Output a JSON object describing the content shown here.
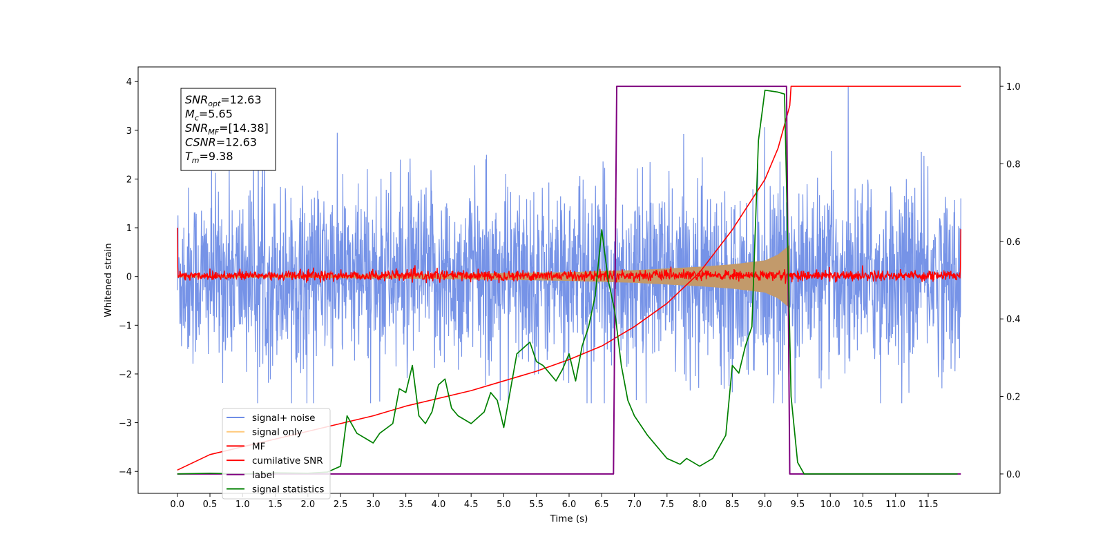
{
  "chart_data": {
    "type": "line",
    "title": "",
    "xlabel": "Time (s)",
    "ylabel_left": "Whitened strain",
    "ylabel_right": "",
    "xlim": [
      -0.6,
      12.6
    ],
    "ylim_left": [
      -4.45,
      4.3
    ],
    "ylim_right": [
      -0.05,
      1.05
    ],
    "x_ticks": [
      0.0,
      0.5,
      1.0,
      1.5,
      2.0,
      2.5,
      3.0,
      3.5,
      4.0,
      4.5,
      5.0,
      5.5,
      6.0,
      6.5,
      7.0,
      7.5,
      8.0,
      8.5,
      9.0,
      9.5,
      10.0,
      10.5,
      11.0,
      11.5
    ],
    "x_tick_labels": [
      "0.0",
      "0.5",
      "1.0",
      "1.5",
      "2.0",
      "2.5",
      "3.0",
      "3.5",
      "4.0",
      "4.5",
      "5.0",
      "5.5",
      "6.0",
      "6.5",
      "7.0",
      "7.5",
      "8.0",
      "8.5",
      "9.0",
      "9.5",
      "10.0",
      "10.5",
      "11.0",
      "11.5"
    ],
    "y_left_ticks": [
      -4,
      -3,
      -2,
      -1,
      0,
      1,
      2,
      3,
      4
    ],
    "y_left_tick_labels": [
      "−4",
      "−3",
      "−2",
      "−1",
      "0",
      "1",
      "2",
      "3",
      "4"
    ],
    "y_right_ticks": [
      0.0,
      0.2,
      0.4,
      0.6,
      0.8,
      1.0
    ],
    "y_right_tick_labels": [
      "0.0",
      "0.2",
      "0.4",
      "0.6",
      "0.8",
      "1.0"
    ],
    "grid": false,
    "legend_placement": "lower-left",
    "series": [
      {
        "name": "signal+ noise",
        "axis": "left",
        "color": "#6f8de6",
        "style": "noise",
        "x_range": [
          0.0,
          12.0
        ],
        "approx_range": [
          -2.6,
          3.9
        ],
        "note_values": []
      },
      {
        "name": "signal only",
        "axis": "left",
        "color": "#ffb74d",
        "style": "chirp-envelope",
        "x": [
          0.0,
          2.0,
          4.0,
          6.0,
          7.0,
          8.0,
          8.5,
          9.0,
          9.2,
          9.38
        ],
        "amplitude": [
          0.02,
          0.03,
          0.05,
          0.09,
          0.13,
          0.2,
          0.25,
          0.33,
          0.45,
          0.65
        ]
      },
      {
        "name": "MF",
        "axis": "left",
        "color": "#ff0000",
        "style": "noise-small",
        "x_range": [
          0.0,
          12.0
        ],
        "approx_range": [
          -0.15,
          0.2
        ],
        "edge_values": [
          1.0,
          0.97
        ]
      },
      {
        "name": "cumilative SNR",
        "axis": "right",
        "color": "#ff0000",
        "x": [
          0.0,
          0.5,
          1.0,
          1.5,
          2.0,
          2.5,
          3.0,
          3.5,
          4.0,
          4.5,
          5.0,
          5.5,
          6.0,
          6.5,
          7.0,
          7.5,
          8.0,
          8.5,
          9.0,
          9.2,
          9.38,
          9.4,
          12.0
        ],
        "y": [
          0.01,
          0.05,
          0.07,
          0.09,
          0.11,
          0.13,
          0.15,
          0.175,
          0.195,
          0.215,
          0.24,
          0.265,
          0.295,
          0.33,
          0.38,
          0.44,
          0.52,
          0.63,
          0.76,
          0.84,
          0.95,
          1.0,
          1.0
        ]
      },
      {
        "name": "label",
        "axis": "right",
        "color": "#800080",
        "x": [
          0.0,
          6.68,
          6.73,
          9.33,
          9.38,
          12.0
        ],
        "y": [
          0.0,
          0.0,
          1.0,
          1.0,
          0.0,
          0.0
        ]
      },
      {
        "name": "signal statistics",
        "axis": "right",
        "color": "#008000",
        "x": [
          0.0,
          0.5,
          1.0,
          1.5,
          2.0,
          2.3,
          2.5,
          2.6,
          2.75,
          2.9,
          3.0,
          3.1,
          3.3,
          3.4,
          3.5,
          3.6,
          3.7,
          3.8,
          3.9,
          4.0,
          4.1,
          4.2,
          4.3,
          4.5,
          4.7,
          4.8,
          4.9,
          5.0,
          5.2,
          5.4,
          5.5,
          5.6,
          5.8,
          5.9,
          6.0,
          6.1,
          6.2,
          6.3,
          6.4,
          6.5,
          6.6,
          6.7,
          6.8,
          6.9,
          7.0,
          7.2,
          7.5,
          7.7,
          7.8,
          8.0,
          8.2,
          8.4,
          8.5,
          8.6,
          8.7,
          8.8,
          8.9,
          9.0,
          9.2,
          9.3,
          9.4,
          9.5,
          9.6,
          10.0,
          11.0,
          11.95
        ],
        "y": [
          0.0,
          0.002,
          0.0,
          0.003,
          0.002,
          0.005,
          0.02,
          0.15,
          0.105,
          0.09,
          0.08,
          0.105,
          0.13,
          0.22,
          0.21,
          0.28,
          0.15,
          0.13,
          0.16,
          0.23,
          0.245,
          0.17,
          0.15,
          0.13,
          0.16,
          0.21,
          0.19,
          0.12,
          0.31,
          0.34,
          0.29,
          0.28,
          0.24,
          0.27,
          0.31,
          0.24,
          0.33,
          0.38,
          0.46,
          0.63,
          0.5,
          0.42,
          0.28,
          0.19,
          0.15,
          0.1,
          0.04,
          0.025,
          0.04,
          0.02,
          0.04,
          0.1,
          0.28,
          0.26,
          0.33,
          0.38,
          0.86,
          0.99,
          0.985,
          0.98,
          0.2,
          0.03,
          0.0,
          0.0,
          0.0,
          0.0
        ]
      }
    ],
    "legend": [
      "signal+ noise",
      "signal only",
      "MF",
      "cumilative SNR",
      "label",
      "signal statistics"
    ],
    "info_box": [
      {
        "main": "SNR",
        "sub": "opt",
        "value": "=12.63"
      },
      {
        "main": "M",
        "sub": "c",
        "value": "=5.65"
      },
      {
        "main": "SNR",
        "sub": "MF",
        "value": "=[14.38]"
      },
      {
        "main": "CSNR",
        "sub": "",
        "value": "=12.63"
      },
      {
        "main": "T",
        "sub": "m",
        "value": "=9.38"
      }
    ]
  }
}
